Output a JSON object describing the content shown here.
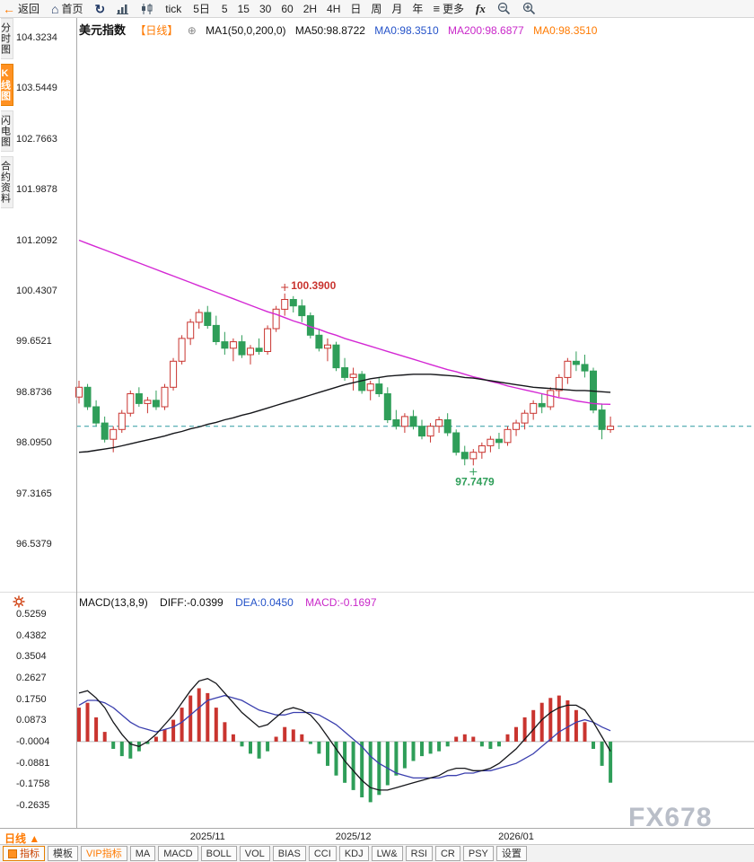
{
  "toolbar": {
    "back_label": "返回",
    "home_label": "首页",
    "tick_label": "tick",
    "five_day_label": "5日",
    "periods": [
      "5",
      "15",
      "30",
      "60",
      "2H",
      "4H",
      "日",
      "周",
      "月",
      "年"
    ],
    "more_label": "更多",
    "fx_label": "fx"
  },
  "sidebar": {
    "tabs": [
      {
        "label": "分时图"
      },
      {
        "label": "K线图"
      },
      {
        "label": "闪电图"
      },
      {
        "label": "合约资料"
      }
    ],
    "active_tab": "K线图"
  },
  "chart_header": {
    "symbol": "美元指数",
    "period_tag": "【日线】",
    "ma_setting": "MA1(50,0,200,0)",
    "ma50": "MA50:98.8722",
    "ma0_blue": "MA0:98.3510",
    "ma200": "MA200:98.6877",
    "ma0_orange": "MA0:98.3510"
  },
  "macd_header": {
    "title": "MACD(13,8,9)",
    "diff": "DIFF:-0.0399",
    "dea": "DEA:0.0450",
    "macd": "MACD:-0.1697"
  },
  "bottom": {
    "period_selector": "日线 ▲",
    "tabs": [
      "指标",
      "模板",
      "VIP指标",
      "MA",
      "MACD",
      "BOLL",
      "VOL",
      "BIAS",
      "CCI",
      "KDJ",
      "LW&",
      "RSI",
      "CR",
      "PSY",
      "设置"
    ]
  },
  "watermark": "FX678",
  "colors": {
    "up": "#c9342f",
    "down": "#2f9e59",
    "ma50": "#15161a",
    "ma200": "#d428d4",
    "diff": "#15161a",
    "dea": "#3a3fae",
    "price_line": "#2d9aa0",
    "accent": "#ff7a00",
    "blue_text": "#2553c9",
    "magenta_text": "#c928c9"
  },
  "chart_data": [
    {
      "type": "candlestick",
      "title": "美元指数 日线",
      "ylim": [
        96.5379,
        104.3234
      ],
      "y_ticks": [
        "104.3234",
        "103.5449",
        "102.7663",
        "101.9878",
        "101.2092",
        "100.4307",
        "99.6521",
        "98.8736",
        "98.0950",
        "97.3165",
        "96.5379"
      ],
      "x_ticks": [
        {
          "label": "2025/11",
          "index": 15
        },
        {
          "label": "2025/12",
          "index": 32
        },
        {
          "label": "2026/01",
          "index": 51
        }
      ],
      "last_price": 98.351,
      "annotations": {
        "high": {
          "index": 24,
          "price": 100.39,
          "label": "100.3900"
        },
        "low": {
          "index": 46,
          "price": 97.7479,
          "label": "97.7479"
        }
      },
      "candles_ohlc": [
        [
          98.8,
          99.05,
          98.7,
          98.95
        ],
        [
          98.95,
          99.0,
          98.6,
          98.65
        ],
        [
          98.65,
          98.75,
          98.35,
          98.4
        ],
        [
          98.4,
          98.5,
          98.1,
          98.15
        ],
        [
          98.15,
          98.35,
          97.95,
          98.3
        ],
        [
          98.3,
          98.6,
          98.25,
          98.55
        ],
        [
          98.55,
          98.9,
          98.5,
          98.85
        ],
        [
          98.85,
          98.95,
          98.65,
          98.7
        ],
        [
          98.7,
          98.8,
          98.55,
          98.75
        ],
        [
          98.75,
          98.9,
          98.6,
          98.65
        ],
        [
          98.65,
          99.0,
          98.6,
          98.95
        ],
        [
          98.95,
          99.4,
          98.9,
          99.35
        ],
        [
          99.35,
          99.75,
          99.3,
          99.7
        ],
        [
          99.7,
          100.0,
          99.6,
          99.95
        ],
        [
          99.95,
          100.15,
          99.85,
          100.1
        ],
        [
          100.1,
          100.2,
          99.85,
          99.9
        ],
        [
          99.9,
          100.05,
          99.6,
          99.65
        ],
        [
          99.65,
          99.8,
          99.45,
          99.55
        ],
        [
          99.55,
          99.7,
          99.35,
          99.65
        ],
        [
          99.65,
          99.75,
          99.4,
          99.45
        ],
        [
          99.45,
          99.6,
          99.3,
          99.55
        ],
        [
          99.55,
          99.7,
          99.45,
          99.5
        ],
        [
          99.5,
          99.9,
          99.45,
          99.85
        ],
        [
          99.85,
          100.2,
          99.8,
          100.15
        ],
        [
          100.15,
          100.39,
          100.05,
          100.3
        ],
        [
          100.3,
          100.35,
          100.1,
          100.2
        ],
        [
          100.2,
          100.3,
          99.95,
          100.05
        ],
        [
          100.05,
          100.1,
          99.7,
          99.75
        ],
        [
          99.75,
          99.85,
          99.5,
          99.55
        ],
        [
          99.55,
          99.7,
          99.35,
          99.6
        ],
        [
          99.6,
          99.65,
          99.2,
          99.25
        ],
        [
          99.25,
          99.4,
          99.05,
          99.1
        ],
        [
          99.1,
          99.25,
          98.9,
          99.15
        ],
        [
          99.15,
          99.2,
          98.85,
          98.9
        ],
        [
          98.9,
          99.05,
          98.75,
          99.0
        ],
        [
          99.0,
          99.1,
          98.8,
          98.85
        ],
        [
          98.85,
          98.95,
          98.4,
          98.45
        ],
        [
          98.45,
          98.6,
          98.3,
          98.35
        ],
        [
          98.35,
          98.55,
          98.25,
          98.5
        ],
        [
          98.5,
          98.6,
          98.3,
          98.35
        ],
        [
          98.35,
          98.45,
          98.15,
          98.2
        ],
        [
          98.2,
          98.4,
          98.1,
          98.35
        ],
        [
          98.35,
          98.5,
          98.25,
          98.45
        ],
        [
          98.45,
          98.55,
          98.2,
          98.25
        ],
        [
          98.25,
          98.3,
          97.9,
          97.95
        ],
        [
          97.95,
          98.05,
          97.75,
          97.85
        ],
        [
          97.85,
          98.0,
          97.7479,
          97.95
        ],
        [
          97.95,
          98.1,
          97.85,
          98.05
        ],
        [
          98.05,
          98.2,
          97.95,
          98.15
        ],
        [
          98.15,
          98.25,
          98.0,
          98.1
        ],
        [
          98.1,
          98.35,
          98.05,
          98.3
        ],
        [
          98.3,
          98.45,
          98.2,
          98.4
        ],
        [
          98.4,
          98.6,
          98.3,
          98.55
        ],
        [
          98.55,
          98.75,
          98.45,
          98.7
        ],
        [
          98.7,
          98.85,
          98.55,
          98.65
        ],
        [
          98.65,
          98.95,
          98.6,
          98.9
        ],
        [
          98.9,
          99.15,
          98.8,
          99.1
        ],
        [
          99.1,
          99.4,
          99.0,
          99.35
        ],
        [
          99.35,
          99.5,
          99.2,
          99.3
        ],
        [
          99.3,
          99.45,
          99.1,
          99.2
        ],
        [
          99.2,
          99.25,
          98.55,
          98.6
        ],
        [
          98.6,
          98.7,
          98.15,
          98.3
        ],
        [
          98.3,
          98.5,
          98.25,
          98.351
        ]
      ],
      "ma50": [
        97.95,
        97.96,
        97.98,
        98.0,
        98.02,
        98.05,
        98.08,
        98.11,
        98.14,
        98.17,
        98.2,
        98.24,
        98.27,
        98.31,
        98.34,
        98.38,
        98.41,
        98.45,
        98.48,
        98.52,
        98.55,
        98.59,
        98.63,
        98.67,
        98.71,
        98.75,
        98.79,
        98.83,
        98.87,
        98.91,
        98.95,
        98.99,
        99.02,
        99.05,
        99.08,
        99.1,
        99.12,
        99.13,
        99.14,
        99.15,
        99.15,
        99.15,
        99.14,
        99.13,
        99.12,
        99.1,
        99.09,
        99.07,
        99.05,
        99.03,
        99.01,
        98.99,
        98.97,
        98.95,
        98.94,
        98.93,
        98.92,
        98.91,
        98.9,
        98.9,
        98.89,
        98.88,
        98.8722
      ],
      "ma200": [
        101.21,
        101.16,
        101.11,
        101.06,
        101.01,
        100.96,
        100.91,
        100.86,
        100.81,
        100.76,
        100.71,
        100.66,
        100.61,
        100.56,
        100.51,
        100.46,
        100.41,
        100.36,
        100.31,
        100.26,
        100.21,
        100.16,
        100.11,
        100.07,
        100.02,
        99.97,
        99.93,
        99.88,
        99.84,
        99.79,
        99.75,
        99.7,
        99.66,
        99.62,
        99.58,
        99.54,
        99.5,
        99.46,
        99.42,
        99.38,
        99.34,
        99.3,
        99.26,
        99.22,
        99.19,
        99.15,
        99.11,
        99.08,
        99.04,
        99.01,
        98.97,
        98.94,
        98.91,
        98.88,
        98.85,
        98.82,
        98.79,
        98.77,
        98.74,
        98.72,
        98.7,
        98.69,
        98.6877
      ]
    },
    {
      "type": "bar",
      "title": "MACD(13,8,9)",
      "ylim": [
        -0.2635,
        0.5259
      ],
      "y_ticks": [
        "0.5259",
        "0.4382",
        "0.3504",
        "0.2627",
        "0.1750",
        "0.0873",
        "-0.0004",
        "-0.0881",
        "-0.1758",
        "-0.2635"
      ],
      "hist": [
        0.14,
        0.16,
        0.1,
        0.04,
        -0.03,
        -0.06,
        -0.07,
        -0.04,
        -0.01,
        0.02,
        0.05,
        0.09,
        0.14,
        0.19,
        0.22,
        0.2,
        0.14,
        0.08,
        0.03,
        -0.02,
        -0.05,
        -0.07,
        -0.04,
        0.02,
        0.06,
        0.05,
        0.03,
        -0.01,
        -0.05,
        -0.1,
        -0.14,
        -0.17,
        -0.2,
        -0.23,
        -0.25,
        -0.22,
        -0.18,
        -0.14,
        -0.11,
        -0.08,
        -0.06,
        -0.05,
        -0.04,
        -0.02,
        0.02,
        0.03,
        0.02,
        -0.02,
        -0.03,
        -0.02,
        0.03,
        0.06,
        0.1,
        0.13,
        0.16,
        0.18,
        0.19,
        0.17,
        0.13,
        0.08,
        -0.03,
        -0.1,
        -0.1697
      ],
      "diff": [
        0.2,
        0.21,
        0.18,
        0.14,
        0.08,
        0.03,
        -0.01,
        -0.02,
        0.0,
        0.03,
        0.07,
        0.11,
        0.16,
        0.21,
        0.25,
        0.26,
        0.24,
        0.2,
        0.16,
        0.12,
        0.09,
        0.06,
        0.07,
        0.1,
        0.13,
        0.14,
        0.13,
        0.11,
        0.07,
        0.02,
        -0.03,
        -0.08,
        -0.12,
        -0.16,
        -0.19,
        -0.2,
        -0.2,
        -0.19,
        -0.18,
        -0.17,
        -0.16,
        -0.15,
        -0.14,
        -0.12,
        -0.11,
        -0.11,
        -0.12,
        -0.12,
        -0.11,
        -0.09,
        -0.06,
        -0.03,
        0.01,
        0.05,
        0.09,
        0.12,
        0.14,
        0.15,
        0.15,
        0.13,
        0.08,
        0.02,
        -0.0399
      ],
      "dea": [
        0.15,
        0.17,
        0.17,
        0.16,
        0.14,
        0.11,
        0.08,
        0.06,
        0.05,
        0.04,
        0.05,
        0.06,
        0.08,
        0.11,
        0.14,
        0.17,
        0.18,
        0.19,
        0.18,
        0.17,
        0.15,
        0.13,
        0.12,
        0.11,
        0.11,
        0.12,
        0.12,
        0.12,
        0.11,
        0.09,
        0.07,
        0.04,
        0.01,
        -0.02,
        -0.06,
        -0.09,
        -0.11,
        -0.13,
        -0.14,
        -0.15,
        -0.15,
        -0.15,
        -0.15,
        -0.14,
        -0.14,
        -0.13,
        -0.13,
        -0.12,
        -0.12,
        -0.11,
        -0.1,
        -0.09,
        -0.07,
        -0.05,
        -0.02,
        0.01,
        0.04,
        0.06,
        0.08,
        0.09,
        0.08,
        0.06,
        0.045
      ]
    }
  ]
}
